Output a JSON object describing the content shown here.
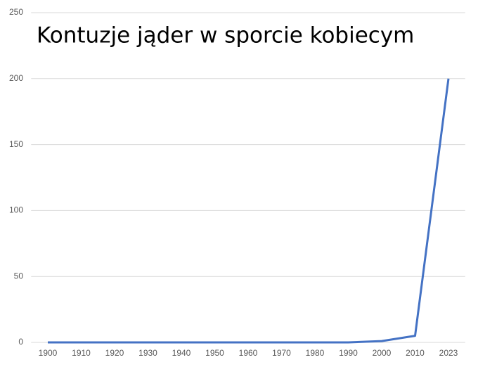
{
  "chart_data": {
    "type": "line",
    "title": "Kontuzje jąder w sporcie kobiecym",
    "categories": [
      "1900",
      "1910",
      "1920",
      "1930",
      "1940",
      "1950",
      "1960",
      "1970",
      "1980",
      "1990",
      "2000",
      "2010",
      "2023"
    ],
    "values": [
      0,
      0,
      0,
      0,
      0,
      0,
      0,
      0,
      0,
      0,
      1,
      5,
      200
    ],
    "color": "#4472c4",
    "ylim": [
      0,
      250
    ],
    "yticks": [
      0,
      50,
      100,
      150,
      200,
      250
    ],
    "grid": true
  }
}
